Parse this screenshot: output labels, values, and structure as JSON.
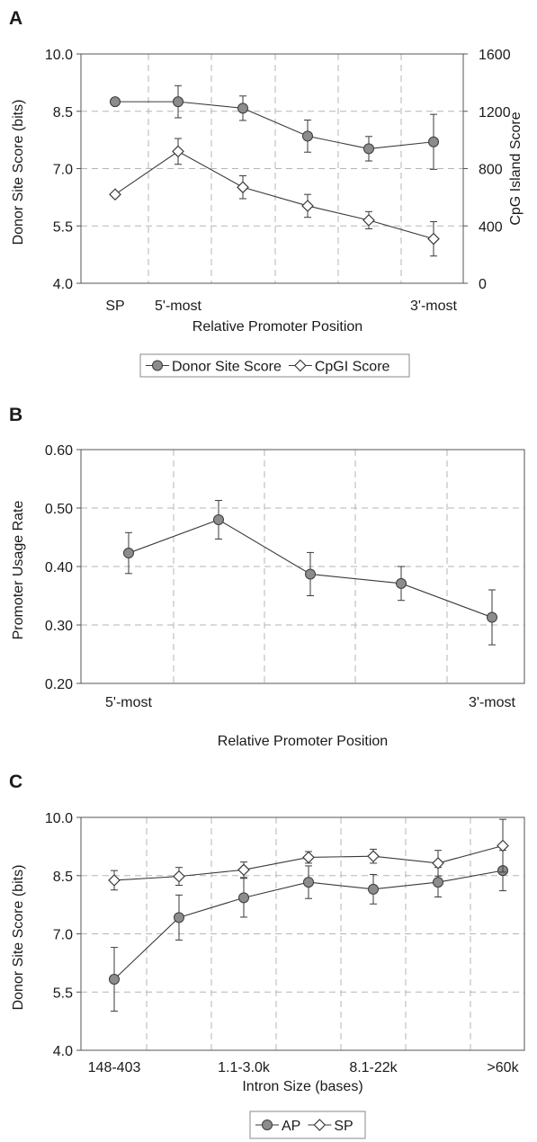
{
  "chart_data": [
    {
      "panel": "A",
      "type": "line",
      "title": "",
      "xlabel": "Relative Promoter Position",
      "ylabel": "Donor Site Score (bits)",
      "y2label": "CpG Island Score",
      "ylim": [
        4.0,
        10.0
      ],
      "y2lim": [
        0,
        1600
      ],
      "yticks": [
        "4.0",
        "5.5",
        "7.0",
        "8.5",
        "10.0"
      ],
      "y2ticks": [
        "0",
        "400",
        "800",
        "1200",
        "1600"
      ],
      "xtick_labels": [
        {
          "label": "SP",
          "pos": 0
        },
        {
          "label": "5'-most",
          "pos": 1
        },
        {
          "label": "3'-most",
          "pos": 5
        }
      ],
      "grid": true,
      "legend": "bottom",
      "x": [
        0,
        1,
        2,
        3,
        4,
        5
      ],
      "series": [
        {
          "name": "Donor Site Score",
          "axis": "left",
          "marker": "circle",
          "values": [
            8.75,
            8.75,
            8.58,
            7.85,
            7.52,
            7.7
          ],
          "err": [
            0,
            0.42,
            0.32,
            0.42,
            0.32,
            0.72
          ]
        },
        {
          "name": "CpGI Score",
          "axis": "right",
          "marker": "diamond",
          "values": [
            620,
            920,
            670,
            540,
            440,
            310
          ],
          "err": [
            0,
            90,
            80,
            80,
            60,
            120
          ]
        }
      ]
    },
    {
      "panel": "B",
      "type": "line",
      "title": "",
      "xlabel": "Relative Promoter Position",
      "ylabel": "Promoter Usage Rate",
      "ylim": [
        0.2,
        0.6
      ],
      "yticks": [
        "0.20",
        "0.30",
        "0.40",
        "0.50",
        "0.60"
      ],
      "xtick_labels": [
        {
          "label": "5'-most",
          "pos": 0
        },
        {
          "label": "3'-most",
          "pos": 4
        }
      ],
      "grid": true,
      "x": [
        0,
        1,
        2,
        3,
        4
      ],
      "series": [
        {
          "name": "",
          "marker": "circle",
          "values": [
            0.423,
            0.48,
            0.387,
            0.371,
            0.313
          ],
          "err": [
            0.035,
            0.033,
            0.037,
            0.029,
            0.047
          ]
        }
      ]
    },
    {
      "panel": "C",
      "type": "line",
      "title": "",
      "xlabel": "Intron Size (bases)",
      "ylabel": "Donor Site Score (bits)",
      "ylim": [
        4.0,
        10.0
      ],
      "yticks": [
        "4.0",
        "5.5",
        "7.0",
        "8.5",
        "10.0"
      ],
      "xtick_labels": [
        {
          "label": "148-403",
          "pos": 0
        },
        {
          "label": "1.1-3.0k",
          "pos": 2
        },
        {
          "label": "8.1-22k",
          "pos": 4
        },
        {
          "label": ">60k",
          "pos": 6
        }
      ],
      "grid": true,
      "legend": "bottom",
      "x": [
        0,
        1,
        2,
        3,
        4,
        5,
        6
      ],
      "series": [
        {
          "name": "AP",
          "marker": "circle",
          "values": [
            5.83,
            7.42,
            7.93,
            8.33,
            8.15,
            8.33,
            8.63
          ],
          "err": [
            0.82,
            0.58,
            0.5,
            0.42,
            0.38,
            0.38,
            0.52
          ]
        },
        {
          "name": "SP",
          "marker": "diamond",
          "values": [
            8.38,
            8.48,
            8.65,
            8.97,
            9.0,
            8.82,
            9.27
          ],
          "err": [
            0.25,
            0.23,
            0.2,
            0.15,
            0.18,
            0.33,
            0.68
          ]
        }
      ]
    }
  ]
}
